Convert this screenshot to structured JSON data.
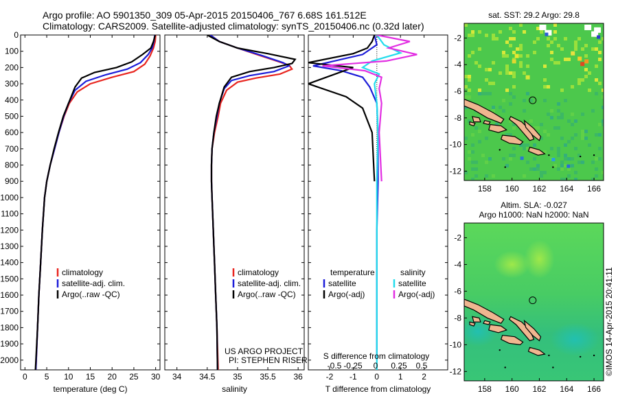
{
  "header": {
    "line1": "Argo profile: AO 5901350_309 05-Apr-2015 20150406_767 6.68S 161.512E",
    "line2": "Climatology: CARS2009. Satellite-adjusted climatology: synTS_20150406.nc (0.32d later)"
  },
  "credit": "©IMOS 14-Apr-2015 20:41:11",
  "project": {
    "line1": "US ARGO PROJECT",
    "line2": "PI: STEPHEN RISER"
  },
  "colors": {
    "climatology": "#e8241e",
    "satellite": "#1c1cd8",
    "argo": "#000000",
    "satellite_sal": "#22dcec",
    "argo_sal": "#e22ee2"
  },
  "chart_data": [
    {
      "type": "line",
      "panel": "temperature",
      "xlabel": "temperature (deg C)",
      "ylabel": "",
      "xlim": [
        -1,
        31
      ],
      "ylim": [
        2060,
        0
      ],
      "xticks": [
        0,
        5,
        10,
        15,
        20,
        25,
        30
      ],
      "yticks": [
        0,
        100,
        200,
        300,
        400,
        500,
        600,
        700,
        800,
        900,
        1000,
        1100,
        1200,
        1300,
        1400,
        1500,
        1600,
        1700,
        1800,
        1900,
        2000
      ],
      "legend": {
        "position": "lower-center",
        "entries": [
          "climatology",
          "satellite-adj. clim.",
          "Argo(..raw -QC)"
        ]
      },
      "series": [
        {
          "name": "climatology",
          "color": "#e8241e",
          "points": [
            [
              30,
              0
            ],
            [
              29.9,
              40
            ],
            [
              29.5,
              80
            ],
            [
              28.7,
              130
            ],
            [
              27.5,
              180
            ],
            [
              25.0,
              225
            ],
            [
              20.0,
              260
            ],
            [
              15.0,
              300
            ],
            [
              12.0,
              350
            ],
            [
              10.2,
              420
            ],
            [
              9.0,
              500
            ],
            [
              7.8,
              600
            ],
            [
              6.8,
              700
            ],
            [
              5.8,
              800
            ],
            [
              5.0,
              900
            ],
            [
              4.5,
              1000
            ],
            [
              4.0,
              1200
            ],
            [
              3.6,
              1400
            ],
            [
              3.2,
              1600
            ],
            [
              2.9,
              1800
            ],
            [
              2.5,
              2060
            ]
          ]
        },
        {
          "name": "satellite-adj. clim.",
          "color": "#1c1cd8",
          "points": [
            [
              29.8,
              0
            ],
            [
              29.6,
              40
            ],
            [
              29.2,
              80
            ],
            [
              28.3,
              120
            ],
            [
              26.5,
              170
            ],
            [
              23.5,
              210
            ],
            [
              18.5,
              245
            ],
            [
              14.0,
              285
            ],
            [
              11.5,
              340
            ],
            [
              10.0,
              420
            ],
            [
              8.9,
              500
            ],
            [
              7.8,
              600
            ],
            [
              6.8,
              700
            ],
            [
              5.8,
              800
            ],
            [
              5.0,
              900
            ],
            [
              4.5,
              1000
            ],
            [
              4.0,
              1200
            ],
            [
              3.6,
              1400
            ],
            [
              3.2,
              1600
            ],
            [
              2.9,
              1800
            ],
            [
              2.5,
              2060
            ]
          ]
        },
        {
          "name": "Argo(..raw -QC)",
          "color": "#000000",
          "points": [
            [
              29.9,
              0
            ],
            [
              29.5,
              40
            ],
            [
              28.9,
              80
            ],
            [
              27.0,
              120
            ],
            [
              24.5,
              165
            ],
            [
              21.0,
              200
            ],
            [
              16.0,
              230
            ],
            [
              13.0,
              265
            ],
            [
              11.5,
              320
            ],
            [
              10.0,
              420
            ],
            [
              8.8,
              500
            ],
            [
              7.7,
              600
            ],
            [
              6.7,
              700
            ],
            [
              5.8,
              800
            ],
            [
              5.0,
              900
            ],
            [
              4.5,
              1000
            ],
            [
              4.0,
              1200
            ],
            [
              3.6,
              1400
            ],
            [
              3.2,
              1600
            ],
            [
              2.9,
              1800
            ],
            [
              2.4,
              2060
            ]
          ]
        }
      ]
    },
    {
      "type": "line",
      "panel": "salinity",
      "xlabel": "salinity",
      "ylabel": "",
      "xlim": [
        33.8,
        36.1
      ],
      "ylim": [
        2060,
        0
      ],
      "xticks": [
        34,
        34.5,
        35,
        35.5,
        36
      ],
      "legend": {
        "position": "lower-center",
        "entries": [
          "climatology",
          "satellite-adj. clim.",
          "Argo(..raw -QC)"
        ]
      },
      "series": [
        {
          "name": "climatology",
          "color": "#e8241e",
          "points": [
            [
              34.55,
              0
            ],
            [
              34.7,
              40
            ],
            [
              35.0,
              80
            ],
            [
              35.4,
              130
            ],
            [
              35.85,
              185
            ],
            [
              35.9,
              210
            ],
            [
              35.7,
              240
            ],
            [
              35.3,
              265
            ],
            [
              35.0,
              290
            ],
            [
              34.82,
              340
            ],
            [
              34.72,
              420
            ],
            [
              34.68,
              500
            ],
            [
              34.62,
              600
            ],
            [
              34.58,
              700
            ],
            [
              34.57,
              800
            ],
            [
              34.57,
              900
            ],
            [
              34.58,
              1000
            ],
            [
              34.6,
              1200
            ],
            [
              34.62,
              1400
            ],
            [
              34.64,
              1600
            ],
            [
              34.66,
              1800
            ],
            [
              34.68,
              2060
            ]
          ]
        },
        {
          "name": "satellite-adj. clim.",
          "color": "#1c1cd8",
          "points": [
            [
              34.55,
              0
            ],
            [
              34.7,
              40
            ],
            [
              35.0,
              80
            ],
            [
              35.35,
              120
            ],
            [
              35.75,
              170
            ],
            [
              35.85,
              190
            ],
            [
              35.6,
              225
            ],
            [
              35.2,
              250
            ],
            [
              34.9,
              280
            ],
            [
              34.78,
              330
            ],
            [
              34.7,
              420
            ],
            [
              34.66,
              500
            ],
            [
              34.61,
              600
            ],
            [
              34.58,
              700
            ],
            [
              34.57,
              800
            ],
            [
              34.57,
              900
            ],
            [
              34.58,
              1000
            ],
            [
              34.6,
              1200
            ],
            [
              34.62,
              1400
            ],
            [
              34.64,
              1600
            ],
            [
              34.66,
              1800
            ],
            [
              34.67,
              2060
            ]
          ]
        },
        {
          "name": "Argo(..raw -QC)",
          "color": "#000000",
          "points": [
            [
              34.5,
              0
            ],
            [
              34.7,
              40
            ],
            [
              35.0,
              80
            ],
            [
              35.5,
              115
            ],
            [
              35.95,
              150
            ],
            [
              35.9,
              175
            ],
            [
              35.6,
              200
            ],
            [
              35.2,
              225
            ],
            [
              34.9,
              260
            ],
            [
              34.78,
              320
            ],
            [
              34.7,
              420
            ],
            [
              34.65,
              500
            ],
            [
              34.61,
              600
            ],
            [
              34.58,
              700
            ],
            [
              34.57,
              800
            ],
            [
              34.57,
              900
            ],
            [
              34.58,
              1000
            ],
            [
              34.6,
              1200
            ],
            [
              34.62,
              1400
            ],
            [
              34.64,
              1600
            ],
            [
              34.66,
              1800
            ],
            [
              34.67,
              2060
            ]
          ]
        }
      ],
      "annotations": [
        "US ARGO PROJECT",
        "PI: STEPHEN RISER"
      ]
    },
    {
      "type": "line",
      "panel": "difference",
      "xlabel": "T difference from climatology",
      "xlabel_top": "S difference from climatology",
      "ylim": [
        2060,
        0
      ],
      "xlim": [
        -2.9,
        3.0
      ],
      "xticks": [
        -2,
        -1,
        0,
        1,
        2
      ],
      "xticks_S": [
        "-0.5",
        "-0.25",
        "0",
        "0.25",
        "0.5"
      ],
      "legend": {
        "position": "lower-center",
        "columns": [
          {
            "heading": "temperature",
            "entries": [
              "satellite",
              "Argo(-adj)"
            ]
          },
          {
            "heading": "salinity",
            "entries": [
              "satellite",
              "Argo(-adj)"
            ]
          }
        ]
      },
      "series": [
        {
          "name": "satellite",
          "group": "temperature",
          "color": "#1c1cd8",
          "points": [
            [
              -0.1,
              0
            ],
            [
              0.0,
              60
            ],
            [
              -0.6,
              120
            ],
            [
              -1.8,
              160
            ],
            [
              -2.7,
              190
            ],
            [
              -1.5,
              220
            ],
            [
              -0.6,
              260
            ],
            [
              -0.3,
              320
            ],
            [
              0.0,
              420
            ],
            [
              0.05,
              600
            ],
            [
              0.05,
              900
            ],
            [
              0.0,
              1200
            ],
            [
              0.0,
              1600
            ],
            [
              0.0,
              2000
            ]
          ]
        },
        {
          "name": "Argo(-adj)",
          "group": "temperature",
          "color": "#000000",
          "points": [
            [
              -0.1,
              0
            ],
            [
              -0.2,
              40
            ],
            [
              -0.4,
              80
            ],
            [
              -1.0,
              115
            ],
            [
              -2.9,
              170
            ],
            [
              -1.0,
              200
            ],
            [
              -2.9,
              300
            ],
            [
              -1.3,
              380
            ],
            [
              -0.6,
              450
            ],
            [
              -0.2,
              600
            ],
            [
              -0.1,
              900
            ]
          ]
        },
        {
          "name": "satellite",
          "group": "salinity",
          "color": "#22dcec",
          "points": [
            [
              0.0,
              0
            ],
            [
              0.3,
              60
            ],
            [
              1.0,
              110
            ],
            [
              -0.2,
              160
            ],
            [
              -0.6,
              200
            ],
            [
              0.1,
              240
            ],
            [
              -0.1,
              300
            ],
            [
              0.0,
              420
            ],
            [
              0.05,
              600
            ],
            [
              0.0,
              900
            ],
            [
              0.0,
              1200
            ],
            [
              0.0,
              1600
            ],
            [
              0.0,
              2060
            ]
          ]
        },
        {
          "name": "Argo(-adj)",
          "group": "salinity",
          "color": "#e22ee2",
          "points": [
            [
              0.0,
              0
            ],
            [
              1.4,
              40
            ],
            [
              0.5,
              80
            ],
            [
              1.7,
              120
            ],
            [
              0.4,
              160
            ],
            [
              -2.3,
              190
            ],
            [
              -0.5,
              220
            ],
            [
              0.2,
              260
            ],
            [
              0.1,
              330
            ],
            [
              0.2,
              420
            ],
            [
              0.1,
              600
            ],
            [
              0.2,
              900
            ]
          ]
        }
      ]
    },
    {
      "type": "heatmap",
      "panel": "sst-map",
      "title": "sat. SST: 29.2 Argo: 29.8",
      "xticks": [
        158,
        160,
        162,
        164,
        166
      ],
      "yticks": [
        -2,
        -4,
        -6,
        -8,
        -10,
        -12
      ],
      "xlim": [
        156.5,
        166.7
      ],
      "ylim": [
        -12.7,
        -0.9
      ],
      "profile_marker": {
        "lon": 161.512,
        "lat": -6.68
      }
    },
    {
      "type": "heatmap",
      "panel": "sla-map",
      "title": "Altim. SLA: -0.027",
      "subtitle": "Argo h1000: NaN h2000: NaN",
      "xticks": [
        158,
        160,
        162,
        164,
        166
      ],
      "yticks": [
        -2,
        -4,
        -6,
        -8,
        -10,
        -12
      ],
      "xlim": [
        156.5,
        166.7
      ],
      "ylim": [
        -12.7,
        -0.9
      ],
      "profile_marker": {
        "lon": 161.512,
        "lat": -6.68
      }
    }
  ]
}
